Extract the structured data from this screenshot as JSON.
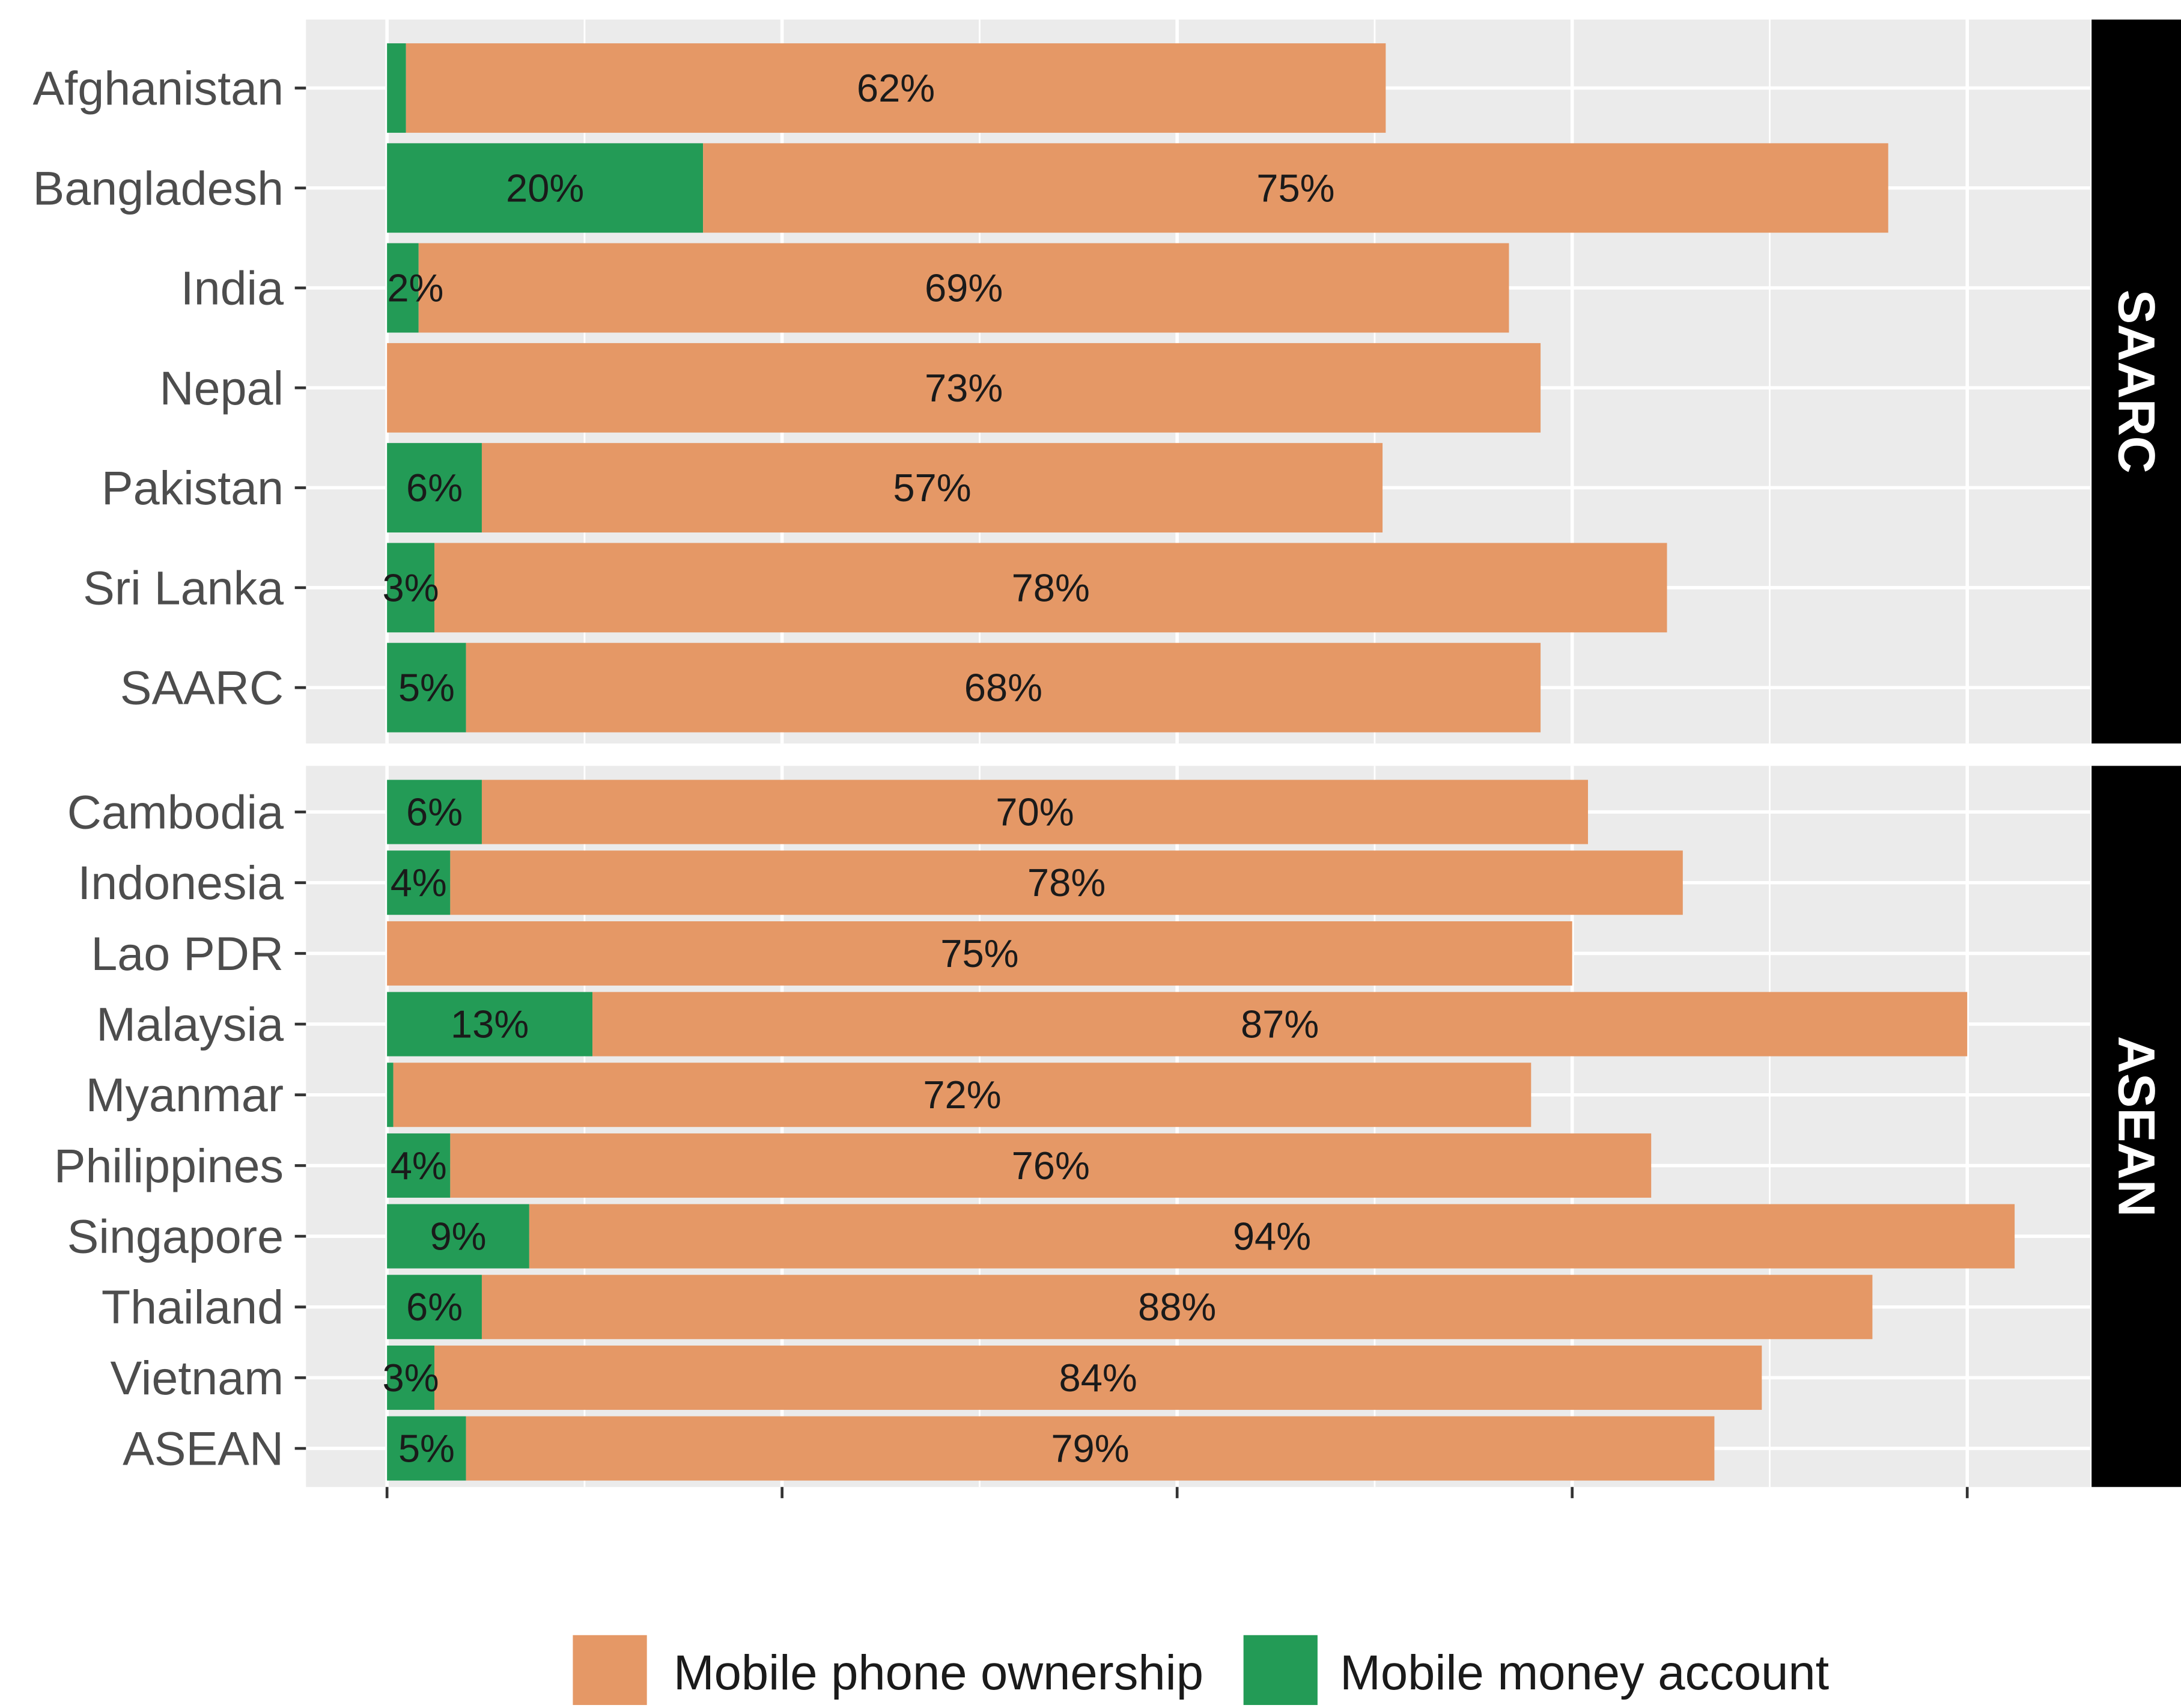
{
  "chart_data": {
    "type": "bar",
    "orientation": "horizontal",
    "stacked": true,
    "x_range": [
      -0.048,
      1.07
    ],
    "x_gridlines": [
      0,
      0.25,
      0.5,
      0.75,
      1.0
    ],
    "grid": true,
    "legend_position": "bottom",
    "colors": {
      "panel_background": "#ebebeb",
      "gridline": "#ffffff",
      "strip_background": "#000000",
      "strip_text": "#ffffff"
    },
    "series": [
      {
        "name": "Mobile phone ownership",
        "color": "#e59866"
      },
      {
        "name": "Mobile money account",
        "color": "#239b56"
      }
    ],
    "panels": [
      {
        "strip": "SAARC",
        "rows": [
          {
            "category": "Afghanistan",
            "money": 0.012,
            "phone": 0.62,
            "money_label": "",
            "phone_label": "62%"
          },
          {
            "category": "Bangladesh",
            "money": 0.2,
            "phone": 0.75,
            "money_label": "20%",
            "phone_label": "75%"
          },
          {
            "category": "India",
            "money": 0.02,
            "phone": 0.69,
            "money_label": "2%",
            "phone_label": "69%"
          },
          {
            "category": "Nepal",
            "money": 0.0,
            "phone": 0.73,
            "money_label": "",
            "phone_label": "73%"
          },
          {
            "category": "Pakistan",
            "money": 0.06,
            "phone": 0.57,
            "money_label": "6%",
            "phone_label": "57%"
          },
          {
            "category": "Sri Lanka",
            "money": 0.03,
            "phone": 0.78,
            "money_label": "3%",
            "phone_label": "78%"
          },
          {
            "category": "SAARC",
            "money": 0.05,
            "phone": 0.68,
            "money_label": "5%",
            "phone_label": "68%"
          }
        ]
      },
      {
        "strip": "ASEAN",
        "rows": [
          {
            "category": "Cambodia",
            "money": 0.06,
            "phone": 0.7,
            "money_label": "6%",
            "phone_label": "70%"
          },
          {
            "category": "Indonesia",
            "money": 0.04,
            "phone": 0.78,
            "money_label": "4%",
            "phone_label": "78%"
          },
          {
            "category": "Lao PDR",
            "money": 0.0,
            "phone": 0.75,
            "money_label": "",
            "phone_label": "75%"
          },
          {
            "category": "Malaysia",
            "money": 0.13,
            "phone": 0.87,
            "money_label": "13%",
            "phone_label": "87%"
          },
          {
            "category": "Myanmar",
            "money": 0.004,
            "phone": 0.72,
            "money_label": "",
            "phone_label": "72%"
          },
          {
            "category": "Philippines",
            "money": 0.04,
            "phone": 0.76,
            "money_label": "4%",
            "phone_label": "76%"
          },
          {
            "category": "Singapore",
            "money": 0.09,
            "phone": 0.94,
            "money_label": "9%",
            "phone_label": "94%"
          },
          {
            "category": "Thailand",
            "money": 0.06,
            "phone": 0.88,
            "money_label": "6%",
            "phone_label": "88%"
          },
          {
            "category": "Vietnam",
            "money": 0.03,
            "phone": 0.84,
            "money_label": "3%",
            "phone_label": "84%"
          },
          {
            "category": "ASEAN",
            "money": 0.05,
            "phone": 0.79,
            "money_label": "5%",
            "phone_label": "79%"
          }
        ]
      }
    ]
  }
}
